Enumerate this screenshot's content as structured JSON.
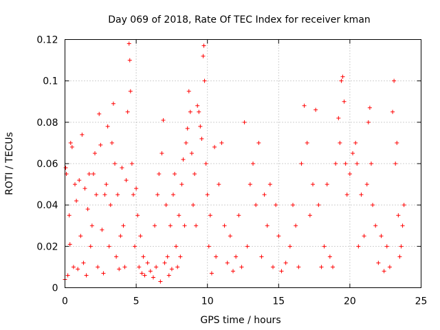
{
  "chart_data": {
    "type": "scatter",
    "title": "Day 069 of 2018, Rate Of TEC Index for receiver kman",
    "xlabel": "GPS time / hours",
    "ylabel": "ROTI / TECUs",
    "xlim": [
      0,
      25
    ],
    "ylim": [
      0,
      0.12
    ],
    "xticks": [
      0,
      5,
      10,
      15,
      20,
      25
    ],
    "xtick_labels": [
      "0",
      "5",
      "10",
      "15",
      "20",
      "25"
    ],
    "yticks": [
      0,
      0.02,
      0.04,
      0.06,
      0.08,
      0.1,
      0.12
    ],
    "ytick_labels": [
      "0",
      "0.02",
      "0.04",
      "0.06",
      "0.08",
      "0.1",
      "0.12"
    ],
    "grid": true,
    "marker": "+",
    "color": "#ff0000",
    "series": [
      {
        "name": "ROTI",
        "note": "representative sample of the dense point cloud, values read from the plot",
        "points": [
          [
            0.0,
            0.004
          ],
          [
            0.05,
            0.058
          ],
          [
            0.1,
            0.055
          ],
          [
            0.2,
            0.006
          ],
          [
            0.3,
            0.035
          ],
          [
            0.35,
            0.021
          ],
          [
            0.4,
            0.07
          ],
          [
            0.5,
            0.068
          ],
          [
            0.6,
            0.01
          ],
          [
            0.7,
            0.05
          ],
          [
            0.8,
            0.042
          ],
          [
            0.9,
            0.009
          ],
          [
            1.0,
            0.052
          ],
          [
            1.1,
            0.025
          ],
          [
            1.2,
            0.074
          ],
          [
            1.3,
            0.012
          ],
          [
            1.4,
            0.048
          ],
          [
            1.5,
            0.006
          ],
          [
            1.6,
            0.038
          ],
          [
            1.7,
            0.055
          ],
          [
            1.8,
            0.02
          ],
          [
            1.9,
            0.03
          ],
          [
            2.0,
            0.055
          ],
          [
            2.1,
            0.065
          ],
          [
            2.2,
            0.045
          ],
          [
            2.3,
            0.01
          ],
          [
            2.4,
            0.084
          ],
          [
            2.5,
            0.069
          ],
          [
            2.6,
            0.028
          ],
          [
            2.7,
            0.007
          ],
          [
            2.8,
            0.045
          ],
          [
            2.9,
            0.05
          ],
          [
            3.0,
            0.078
          ],
          [
            3.1,
            0.02
          ],
          [
            3.2,
            0.04
          ],
          [
            3.3,
            0.07
          ],
          [
            3.4,
            0.089
          ],
          [
            3.5,
            0.06
          ],
          [
            3.6,
            0.015
          ],
          [
            3.7,
            0.045
          ],
          [
            3.8,
            0.009
          ],
          [
            3.9,
            0.025
          ],
          [
            4.0,
            0.058
          ],
          [
            4.1,
            0.03
          ],
          [
            4.2,
            0.01
          ],
          [
            4.3,
            0.052
          ],
          [
            4.4,
            0.085
          ],
          [
            4.5,
            0.118
          ],
          [
            4.55,
            0.11
          ],
          [
            4.6,
            0.095
          ],
          [
            4.7,
            0.06
          ],
          [
            4.8,
            0.045
          ],
          [
            4.9,
            0.02
          ],
          [
            5.0,
            0.048
          ],
          [
            5.1,
            0.035
          ],
          [
            5.2,
            0.01
          ],
          [
            5.3,
            0.025
          ],
          [
            5.4,
            0.007
          ],
          [
            5.5,
            0.015
          ],
          [
            5.6,
            0.006
          ],
          [
            5.8,
            0.012
          ],
          [
            6.0,
            0.008
          ],
          [
            6.2,
            0.005
          ],
          [
            6.3,
            0.03
          ],
          [
            6.4,
            0.01
          ],
          [
            6.5,
            0.045
          ],
          [
            6.6,
            0.055
          ],
          [
            6.7,
            0.003
          ],
          [
            6.8,
            0.065
          ],
          [
            6.9,
            0.081
          ],
          [
            7.0,
            0.012
          ],
          [
            7.1,
            0.04
          ],
          [
            7.2,
            0.015
          ],
          [
            7.3,
            0.006
          ],
          [
            7.4,
            0.03
          ],
          [
            7.5,
            0.009
          ],
          [
            7.6,
            0.045
          ],
          [
            7.7,
            0.055
          ],
          [
            7.8,
            0.02
          ],
          [
            7.9,
            0.01
          ],
          [
            8.0,
            0.035
          ],
          [
            8.1,
            0.015
          ],
          [
            8.2,
            0.05
          ],
          [
            8.3,
            0.062
          ],
          [
            8.4,
            0.03
          ],
          [
            8.5,
            0.07
          ],
          [
            8.6,
            0.077
          ],
          [
            8.7,
            0.095
          ],
          [
            8.8,
            0.085
          ],
          [
            8.9,
            0.065
          ],
          [
            9.0,
            0.04
          ],
          [
            9.1,
            0.055
          ],
          [
            9.2,
            0.03
          ],
          [
            9.3,
            0.088
          ],
          [
            9.4,
            0.085
          ],
          [
            9.5,
            0.078
          ],
          [
            9.6,
            0.072
          ],
          [
            9.7,
            0.112
          ],
          [
            9.75,
            0.117
          ],
          [
            9.8,
            0.1
          ],
          [
            9.9,
            0.06
          ],
          [
            10.0,
            0.045
          ],
          [
            10.1,
            0.02
          ],
          [
            10.2,
            0.035
          ],
          [
            10.3,
            0.007
          ],
          [
            10.5,
            0.068
          ],
          [
            10.6,
            0.015
          ],
          [
            10.8,
            0.05
          ],
          [
            11.0,
            0.07
          ],
          [
            11.2,
            0.03
          ],
          [
            11.4,
            0.012
          ],
          [
            11.6,
            0.025
          ],
          [
            11.8,
            0.008
          ],
          [
            12.0,
            0.015
          ],
          [
            12.2,
            0.035
          ],
          [
            12.4,
            0.01
          ],
          [
            12.6,
            0.08
          ],
          [
            12.8,
            0.02
          ],
          [
            13.0,
            0.05
          ],
          [
            13.2,
            0.06
          ],
          [
            13.4,
            0.04
          ],
          [
            13.6,
            0.07
          ],
          [
            13.8,
            0.015
          ],
          [
            14.0,
            0.045
          ],
          [
            14.2,
            0.03
          ],
          [
            14.4,
            0.05
          ],
          [
            14.6,
            0.01
          ],
          [
            14.8,
            0.04
          ],
          [
            15.0,
            0.025
          ],
          [
            15.2,
            0.008
          ],
          [
            15.5,
            0.012
          ],
          [
            15.8,
            0.02
          ],
          [
            16.0,
            0.04
          ],
          [
            16.2,
            0.03
          ],
          [
            16.4,
            0.01
          ],
          [
            16.6,
            0.06
          ],
          [
            16.8,
            0.088
          ],
          [
            17.0,
            0.07
          ],
          [
            17.2,
            0.035
          ],
          [
            17.4,
            0.05
          ],
          [
            17.6,
            0.086
          ],
          [
            17.8,
            0.04
          ],
          [
            18.0,
            0.01
          ],
          [
            18.2,
            0.02
          ],
          [
            18.4,
            0.05
          ],
          [
            18.6,
            0.015
          ],
          [
            18.8,
            0.01
          ],
          [
            19.0,
            0.06
          ],
          [
            19.2,
            0.082
          ],
          [
            19.3,
            0.07
          ],
          [
            19.4,
            0.1
          ],
          [
            19.5,
            0.102
          ],
          [
            19.6,
            0.09
          ],
          [
            19.7,
            0.06
          ],
          [
            19.8,
            0.045
          ],
          [
            20.0,
            0.055
          ],
          [
            20.2,
            0.065
          ],
          [
            20.4,
            0.07
          ],
          [
            20.5,
            0.06
          ],
          [
            20.6,
            0.02
          ],
          [
            20.8,
            0.045
          ],
          [
            21.0,
            0.025
          ],
          [
            21.2,
            0.05
          ],
          [
            21.3,
            0.08
          ],
          [
            21.4,
            0.087
          ],
          [
            21.5,
            0.06
          ],
          [
            21.6,
            0.04
          ],
          [
            21.8,
            0.03
          ],
          [
            22.0,
            0.012
          ],
          [
            22.2,
            0.025
          ],
          [
            22.4,
            0.008
          ],
          [
            22.6,
            0.02
          ],
          [
            22.8,
            0.01
          ],
          [
            23.0,
            0.085
          ],
          [
            23.1,
            0.1
          ],
          [
            23.2,
            0.06
          ],
          [
            23.3,
            0.07
          ],
          [
            23.4,
            0.035
          ],
          [
            23.5,
            0.015
          ],
          [
            23.6,
            0.02
          ],
          [
            23.7,
            0.03
          ],
          [
            23.8,
            0.04
          ]
        ]
      }
    ]
  }
}
